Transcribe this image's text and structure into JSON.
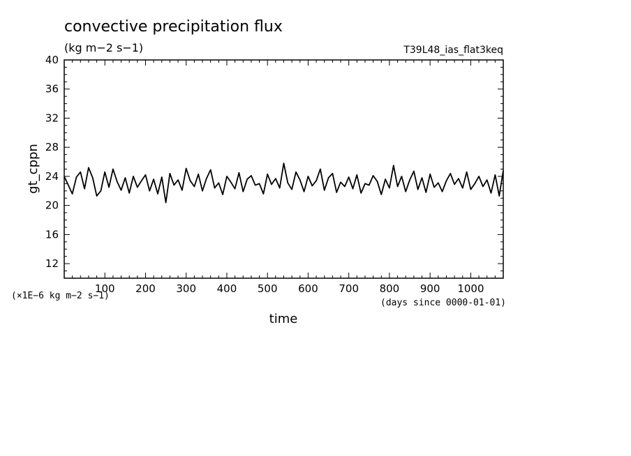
{
  "chart_data": {
    "type": "line",
    "title": "convective precipitation flux",
    "units": "(kg m−2 s−1)",
    "experiment": "T39L48_ias_flat3keq",
    "ylabel": "gt_cppn",
    "xlabel": "time",
    "x_units": "(days since 0000-01-01)",
    "y_scale_note": "(×1E−6 kg m−2 s−1)",
    "xlim": [
      0,
      1080
    ],
    "ylim": [
      10,
      40
    ],
    "x_ticks": [
      100,
      200,
      300,
      400,
      500,
      600,
      700,
      800,
      900,
      1000
    ],
    "x_tick_labels": [
      "100",
      "200",
      "300",
      "400",
      "500",
      "600",
      "700",
      "800",
      "900",
      "1000"
    ],
    "y_ticks": [
      12,
      16,
      20,
      24,
      28,
      32,
      36,
      40
    ],
    "y_tick_labels": [
      "12",
      "16",
      "20",
      "24",
      "28",
      "32",
      "36",
      "40"
    ],
    "grid": false,
    "series": [
      {
        "x": [
          0,
          10,
          20,
          30,
          40,
          50,
          60,
          70,
          80,
          90,
          100,
          110,
          120,
          130,
          140,
          150,
          160,
          170,
          180,
          190,
          200,
          210,
          220,
          230,
          240,
          250,
          260,
          270,
          280,
          290,
          300,
          310,
          320,
          330,
          340,
          350,
          360,
          370,
          380,
          390,
          400,
          410,
          420,
          430,
          440,
          450,
          460,
          470,
          480,
          490,
          500,
          510,
          520,
          530,
          540,
          550,
          560,
          570,
          580,
          590,
          600,
          610,
          620,
          630,
          640,
          650,
          660,
          670,
          680,
          690,
          700,
          710,
          720,
          730,
          740,
          750,
          760,
          770,
          780,
          790,
          800,
          810,
          820,
          830,
          840,
          850,
          860,
          870,
          880,
          890,
          900,
          910,
          920,
          930,
          940,
          950,
          960,
          970,
          980,
          990,
          1000,
          1010,
          1020,
          1030,
          1040,
          1050,
          1060,
          1070,
          1080
        ],
        "y": [
          24.0,
          22.8,
          21.6,
          23.9,
          24.6,
          22.3,
          25.2,
          23.8,
          21.3,
          22.0,
          24.6,
          22.5,
          25.0,
          23.3,
          22.1,
          23.8,
          21.7,
          24.0,
          22.5,
          23.4,
          24.2,
          22.0,
          23.6,
          21.6,
          23.9,
          20.4,
          24.4,
          22.8,
          23.5,
          22.1,
          25.1,
          23.4,
          22.6,
          24.3,
          22.0,
          23.7,
          24.9,
          22.4,
          23.1,
          21.5,
          24.0,
          23.2,
          22.3,
          24.5,
          21.9,
          23.6,
          24.1,
          22.8,
          23.0,
          21.6,
          24.3,
          22.9,
          23.7,
          22.4,
          25.8,
          23.1,
          22.2,
          24.6,
          23.5,
          21.9,
          24.0,
          22.7,
          23.4,
          25.0,
          22.1,
          23.8,
          24.4,
          21.8,
          23.2,
          22.6,
          23.9,
          22.3,
          24.2,
          21.7,
          23.0,
          22.8,
          24.1,
          23.3,
          21.5,
          23.6,
          22.4,
          25.5,
          22.6,
          24.0,
          21.9,
          23.5,
          24.7,
          22.2,
          23.8,
          21.8,
          24.3,
          22.5,
          23.1,
          21.9,
          23.4,
          24.4,
          22.9,
          23.7,
          22.4,
          24.6,
          22.2,
          23.0,
          24.0,
          22.6,
          23.5,
          21.7,
          24.2,
          21.3,
          24.8
        ]
      }
    ]
  }
}
